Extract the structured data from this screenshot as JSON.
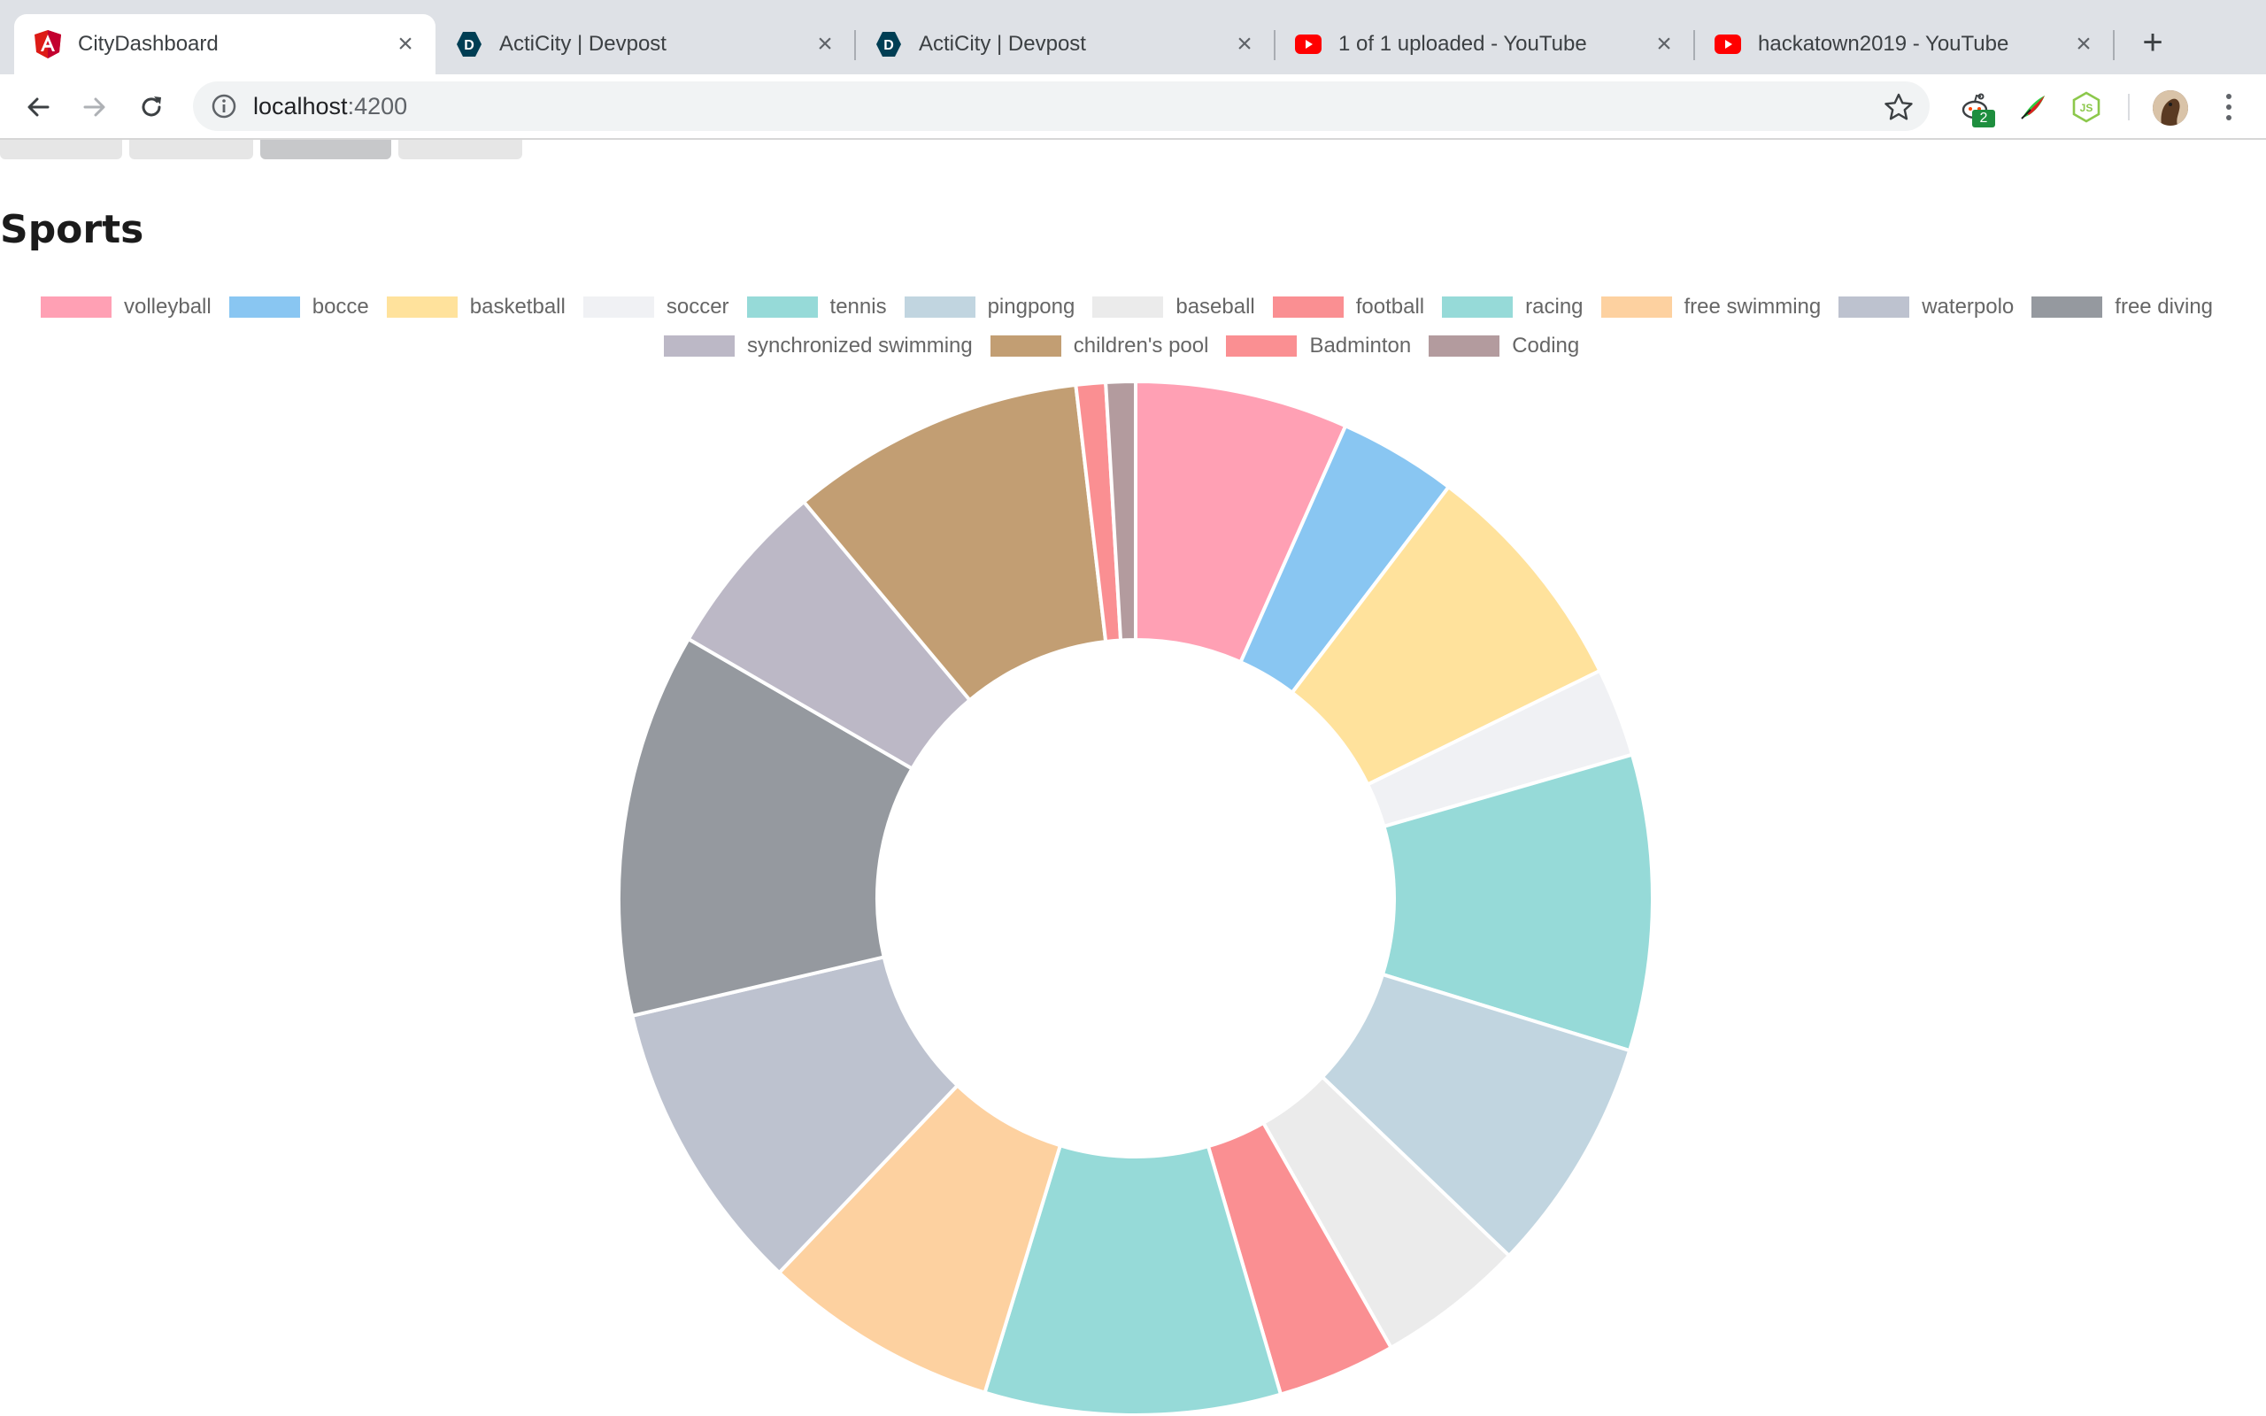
{
  "browser": {
    "tabs": [
      {
        "title": "CityDashboard",
        "favicon": "angular-icon",
        "active": true
      },
      {
        "title": "ActiCity | Devpost",
        "favicon": "devpost-icon",
        "active": false
      },
      {
        "title": "ActiCity | Devpost",
        "favicon": "devpost-icon",
        "active": false
      },
      {
        "title": "1 of 1 uploaded - YouTube",
        "favicon": "youtube-icon",
        "active": false
      },
      {
        "title": "hackatown2019 - YouTube",
        "favicon": "youtube-icon",
        "active": false
      }
    ],
    "url_host": "localhost",
    "url_port": ":4200",
    "extension_badge": "2"
  },
  "page": {
    "section_title": "Sports"
  },
  "chart_data": {
    "type": "doughnut",
    "legend": "top",
    "labels": [
      "volleyball",
      "bocce",
      "basketball",
      "soccer",
      "tennis",
      "pingpong",
      "baseball",
      "football",
      "racing",
      "free swimming",
      "waterpolo",
      "free diving",
      "synchronized swimming",
      "children's pool",
      "Badminton",
      "Coding"
    ],
    "values": [
      7.2,
      4.0,
      8.0,
      3.0,
      10.0,
      8.0,
      5.0,
      4.0,
      10.0,
      8.0,
      10.0,
      13.0,
      6.0,
      10.0,
      1.0,
      1.0
    ],
    "colors": [
      "#ffa0b4",
      "#89c6f2",
      "#ffe29c",
      "#f0f1f4",
      "#96dad8",
      "#c1d5e0",
      "#ebebeb",
      "#fa8f92",
      "#96dad8",
      "#fdd1a0",
      "#bdc2cf",
      "#95999f",
      "#bcb8c6",
      "#c29e73",
      "#fa8f92",
      "#b39b9e"
    ],
    "border_color": "#ffffff"
  }
}
